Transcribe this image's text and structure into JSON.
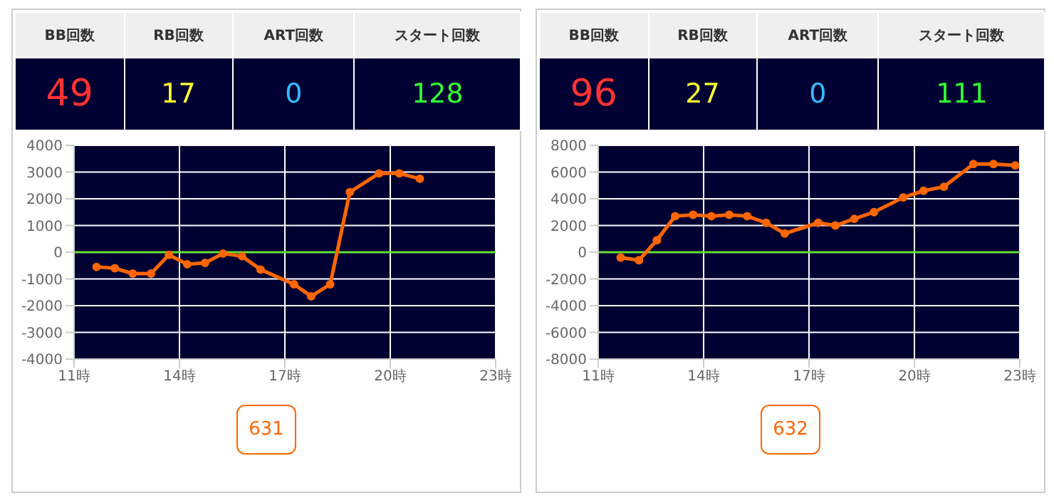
{
  "chart_data": [
    {
      "type": "other",
      "categories": [
        "BB回数",
        "RB回数",
        "ART回数",
        "スタート回数"
      ],
      "values": [
        49,
        17,
        0,
        128
      ],
      "data_labels": true
    },
    {
      "type": "line",
      "x": [
        11.64,
        12.16,
        12.67,
        13.19,
        13.7,
        14.22,
        14.73,
        15.24,
        15.78,
        16.31,
        17.26,
        17.75,
        18.29,
        18.85,
        19.68,
        20.26,
        20.84
      ],
      "series": [
        {
          "color": "#ff6600",
          "values": [
            -550,
            -600,
            -800,
            -800,
            -100,
            -450,
            -400,
            -50,
            -150,
            -650,
            -1200,
            -1650,
            -1200,
            2250,
            2950,
            2950,
            2750
          ]
        }
      ],
      "xlim": [
        11,
        23
      ],
      "xticks": [
        {
          "value": 11,
          "label": "11時"
        },
        {
          "value": 14,
          "label": "14時"
        },
        {
          "value": 17,
          "label": "17時"
        },
        {
          "value": 20,
          "label": "20時"
        },
        {
          "value": 23,
          "label": "23時"
        }
      ],
      "ylim": [
        -4000,
        4000
      ],
      "yticks": [
        -4000,
        -3000,
        -2000,
        -1000,
        0,
        1000,
        2000,
        3000,
        4000
      ],
      "grid": true,
      "marker": "circle",
      "ref_lines": [
        {
          "axis": "y",
          "value": 0,
          "color": "#66dd33"
        }
      ],
      "annotations": [
        "631"
      ]
    },
    {
      "type": "other",
      "categories": [
        "BB回数",
        "RB回数",
        "ART回数",
        "スタート回数"
      ],
      "values": [
        96,
        27,
        0,
        111
      ],
      "data_labels": true
    },
    {
      "type": "line",
      "x": [
        11.64,
        12.16,
        12.67,
        13.19,
        13.7,
        14.22,
        14.73,
        15.24,
        15.78,
        16.31,
        17.26,
        17.75,
        18.29,
        18.85,
        19.68,
        20.26,
        20.84,
        21.68,
        22.25,
        22.87
      ],
      "series": [
        {
          "color": "#ff6600",
          "values": [
            -400,
            -600,
            900,
            2700,
            2800,
            2700,
            2800,
            2700,
            2200,
            1400,
            2200,
            2000,
            2500,
            3000,
            4100,
            4600,
            4900,
            6600,
            6600,
            6500
          ]
        }
      ],
      "xlim": [
        11,
        23
      ],
      "xticks": [
        {
          "value": 11,
          "label": "11時"
        },
        {
          "value": 14,
          "label": "14時"
        },
        {
          "value": 17,
          "label": "17時"
        },
        {
          "value": 20,
          "label": "20時"
        },
        {
          "value": 23,
          "label": "23時"
        }
      ],
      "ylim": [
        -8000,
        8000
      ],
      "yticks": [
        -8000,
        -6000,
        -4000,
        -2000,
        0,
        2000,
        4000,
        6000,
        8000
      ],
      "grid": true,
      "marker": "circle",
      "ref_lines": [
        {
          "axis": "y",
          "value": 0,
          "color": "#66dd33"
        }
      ],
      "annotations": [
        "632"
      ]
    }
  ]
}
